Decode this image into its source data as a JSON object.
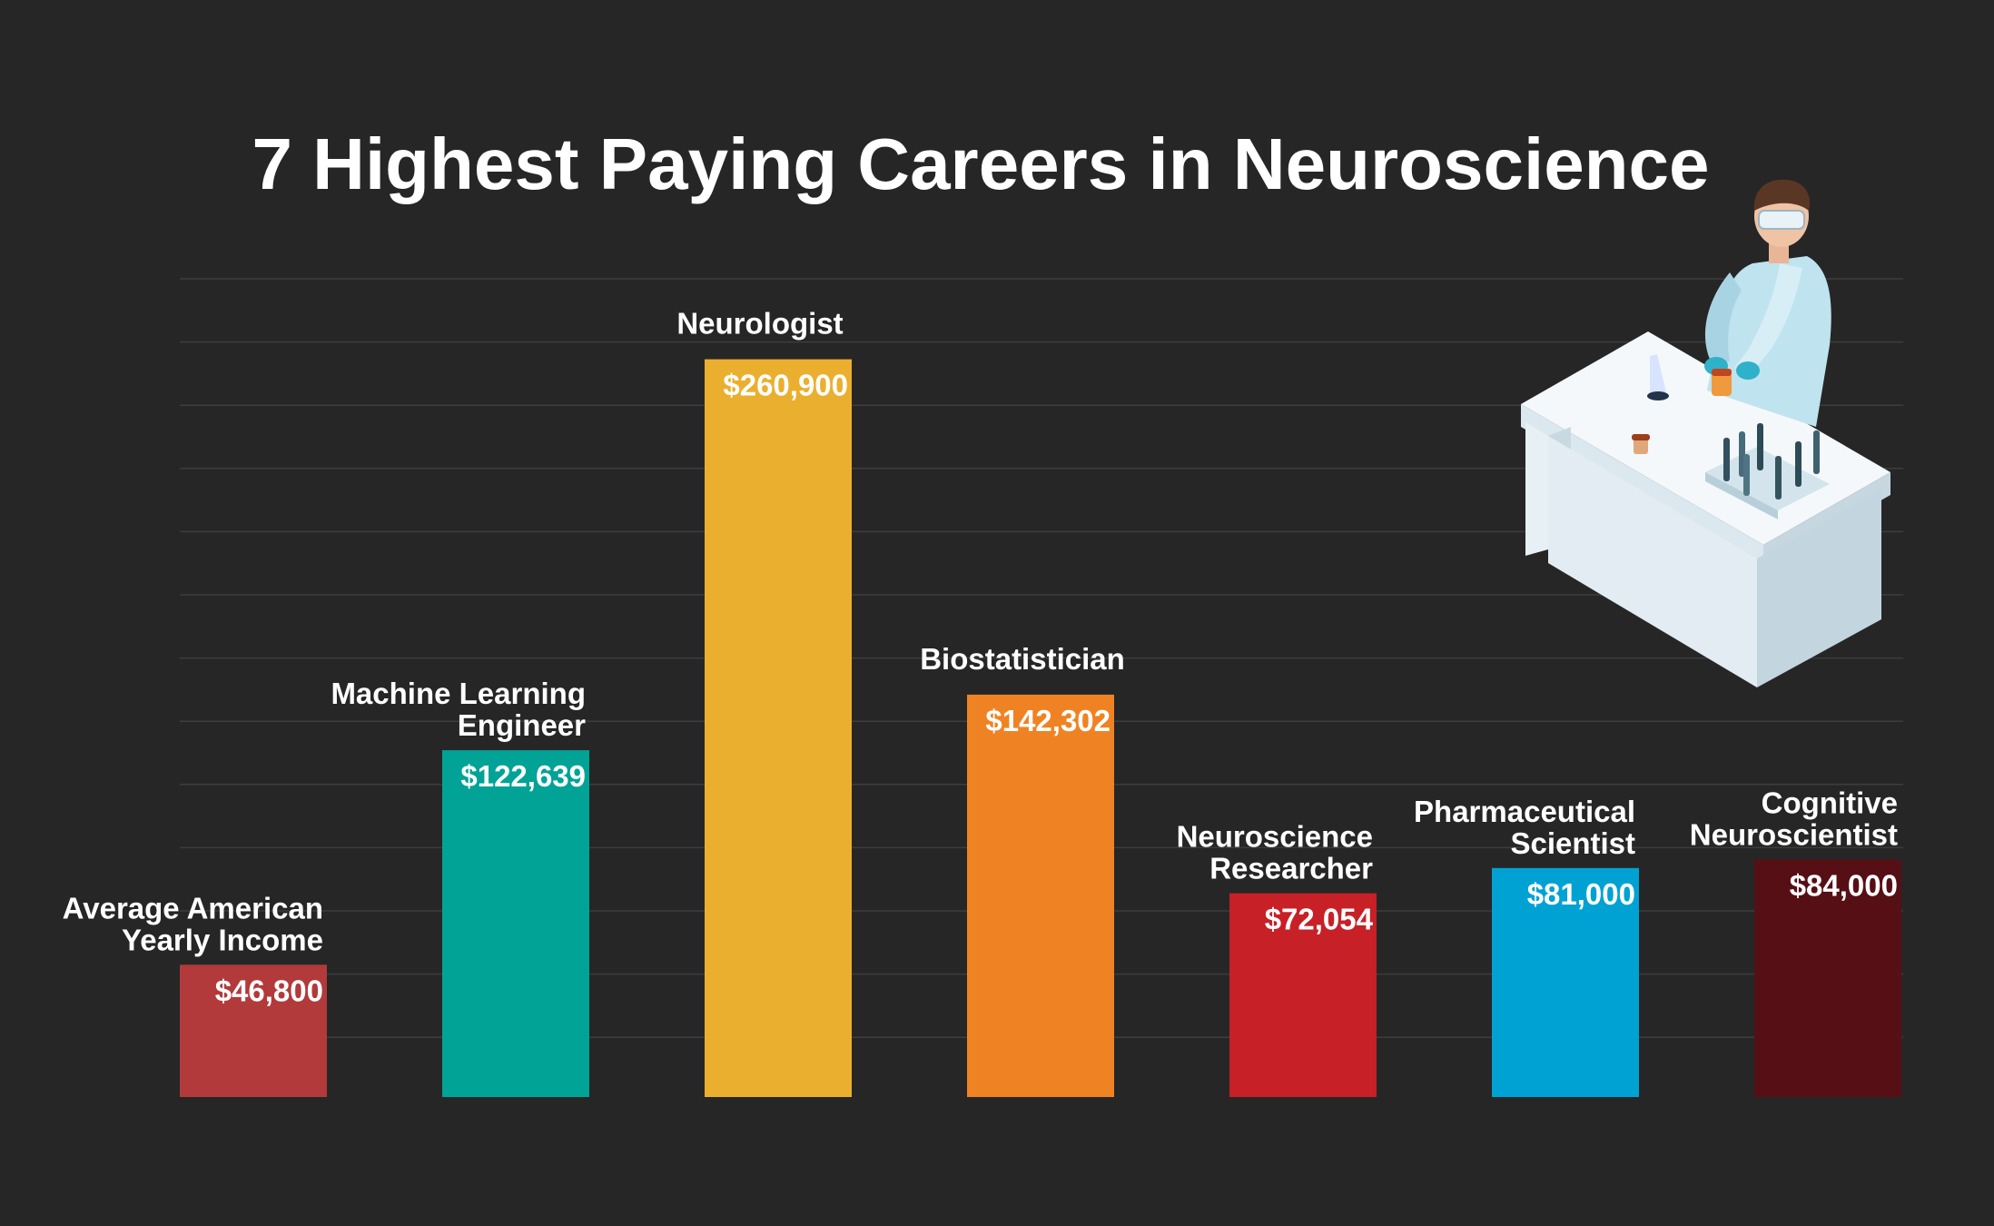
{
  "title": "7 Highest Paying Careers in Neuroscience",
  "colors": {
    "background": "#262626",
    "gridline": "#3d3d3d",
    "text": "#ffffff"
  },
  "illustration": {
    "subject": "scientist-at-lab-bench",
    "icon": "scientist-illustration-icon"
  },
  "chart_data": {
    "type": "bar",
    "title": "7 Highest Paying Careers in Neuroscience",
    "xlabel": "",
    "ylabel": "",
    "ylim": [
      0,
      290000
    ],
    "grid": true,
    "currency": "$",
    "categories": [
      [
        "Average American",
        "Yearly Income"
      ],
      [
        "Machine Learning",
        "Engineer"
      ],
      [
        "Neurologist"
      ],
      [
        "Biostatistician"
      ],
      [
        "Neuroscience",
        "Researcher"
      ],
      [
        "Pharmaceutical",
        "Scientist"
      ],
      [
        "Cognitive",
        "Neuroscientist"
      ]
    ],
    "values": [
      46800,
      122639,
      260900,
      142302,
      72054,
      81000,
      84000
    ],
    "value_labels": [
      "$46,800",
      "$122,639",
      "$260,900",
      "$142,302",
      "$72,054",
      "$81,000",
      "$84,000"
    ],
    "bar_colors": [
      "#b23a3a",
      "#00a396",
      "#ebaf2f",
      "#ef8323",
      "#c72027",
      "#00a2d3",
      "#560f15"
    ]
  }
}
